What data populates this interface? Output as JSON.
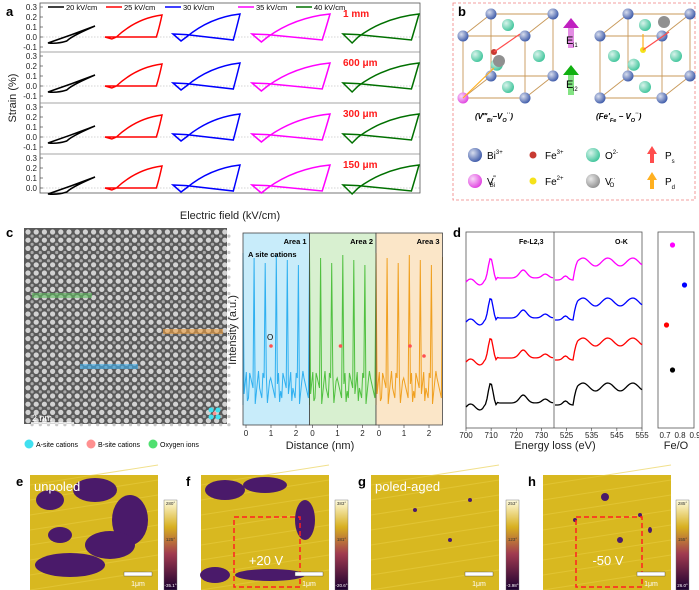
{
  "panel_labels": {
    "a": "a",
    "b": "b",
    "c": "c",
    "d": "d",
    "e": "e",
    "f": "f",
    "g": "g",
    "h": "h"
  },
  "panel_a": {
    "ylabel": "Strain (%)",
    "xlabel": "Electric field (kV/cm)",
    "yticks": [
      "0.3",
      "0.2",
      "0.1",
      "0.0",
      "-0.1"
    ],
    "legend": [
      {
        "label": "20 kV/cm",
        "color": "#000000"
      },
      {
        "label": "25 kV/cm",
        "color": "#ff0000"
      },
      {
        "label": "30 kV/cm",
        "color": "#0000ff"
      },
      {
        "label": "35 kV/cm",
        "color": "#ff00ff"
      },
      {
        "label": "40 kV/cm",
        "color": "#007000"
      }
    ],
    "thickness_labels": [
      "1 mm",
      "600 μm",
      "300 μm",
      "150 μm"
    ],
    "thickness_color": "#ff1a1a",
    "loop_max": [
      0.11,
      0.22,
      0.23,
      0.23,
      0.23
    ],
    "loop_min": [
      -0.06,
      -0.02,
      -0.04,
      -0.05,
      -0.06
    ]
  },
  "panel_b": {
    "field_labels": [
      "E",
      "i1",
      "E",
      "i2"
    ],
    "cell_labels": [
      {
        "main": "(V‴",
        "sub": "Bi",
        "mid": "−V",
        "sub2": "O",
        "sup2": "··",
        "end": ")"
      },
      {
        "main": "(Fe′",
        "sub": "Fe",
        "mid": " − V",
        "sub2": "O",
        "sup2": "··",
        "end": ")"
      }
    ],
    "legend": [
      {
        "label": "Bi",
        "sup": "3+",
        "sub": "",
        "color": "#3b58a8",
        "kind": "sphere"
      },
      {
        "label": "Fe",
        "sup": "3+",
        "sub": "",
        "color": "#c83a32",
        "kind": "small"
      },
      {
        "label": "O",
        "sup": "2-",
        "sub": "",
        "color": "#3dc49a",
        "kind": "sphere"
      },
      {
        "label": "P",
        "sup": "",
        "sub": "s",
        "color": "#ff4d4d",
        "kind": "arrow"
      },
      {
        "label": "V",
        "sup": "‴",
        "sub": "Bi",
        "color": "#e040e0",
        "kind": "sphere"
      },
      {
        "label": "Fe",
        "sup": "2+",
        "sub": "",
        "color": "#f5e21a",
        "kind": "small"
      },
      {
        "label": "V",
        "sup": "··",
        "sub": "O",
        "color": "#909090",
        "kind": "sphere"
      },
      {
        "label": "P",
        "sup": "",
        "sub": "d",
        "color": "#ffb020",
        "kind": "arrow"
      }
    ]
  },
  "panel_c": {
    "scale_bar": "2 nm",
    "legend": [
      {
        "label": "A-site cations",
        "color": "#40e0f0"
      },
      {
        "label": "B-site cations",
        "color": "#ff9090"
      },
      {
        "label": "Oxygen ions",
        "color": "#50e070"
      }
    ],
    "profile": {
      "ylabel": "Intensity (a.u.)",
      "xlabel": "Distance (nm)",
      "areas": [
        {
          "label": "Area 1",
          "color": "#30b0f0",
          "fill": "#c8ecfa"
        },
        {
          "label": "Area 2",
          "color": "#50c040",
          "fill": "#d8f0d0"
        },
        {
          "label": "Area 3",
          "color": "#f0a020",
          "fill": "#fbe6c8"
        }
      ],
      "annotation": "A site cations",
      "marker": "O",
      "xticks": [
        "0",
        "1",
        "2"
      ]
    }
  },
  "panel_d": {
    "titles": [
      "Fe-L2,3",
      "O-K"
    ],
    "xlabel": "Energy loss (eV)",
    "xticks_left": [
      "700",
      "710",
      "720",
      "730"
    ],
    "xticks_right": [
      "525",
      "535",
      "545",
      "555"
    ],
    "series_colors": [
      "#ff00ff",
      "#0000ff",
      "#ff0000",
      "#000000"
    ],
    "fe_o": {
      "xlabel": "Fe/O",
      "xticks": [
        "0.7",
        "0.8",
        "0.9"
      ],
      "values": [
        0.75,
        0.83,
        0.71,
        0.75
      ]
    }
  },
  "panel_efgh": [
    {
      "label": "unpoled",
      "scale": "1μm",
      "cbar": [
        "280°",
        "125°",
        "-35.1°"
      ],
      "voltage": ""
    },
    {
      "label": "",
      "scale": "1μm",
      "cbar": [
        "383°",
        "181°",
        "-20.6°"
      ],
      "voltage": "+20 V"
    },
    {
      "label": "poled-aged",
      "scale": "1μm",
      "cbar": [
        "253°",
        "123°",
        "-3.98°"
      ],
      "voltage": ""
    },
    {
      "label": "",
      "scale": "1μm",
      "cbar": [
        "285°",
        "155°",
        "26.0°"
      ],
      "voltage": "-50 V"
    }
  ],
  "colors": {
    "yellow": "#d8b820",
    "purple": "#4a1a6a",
    "dashed_box": "#ff2020"
  }
}
